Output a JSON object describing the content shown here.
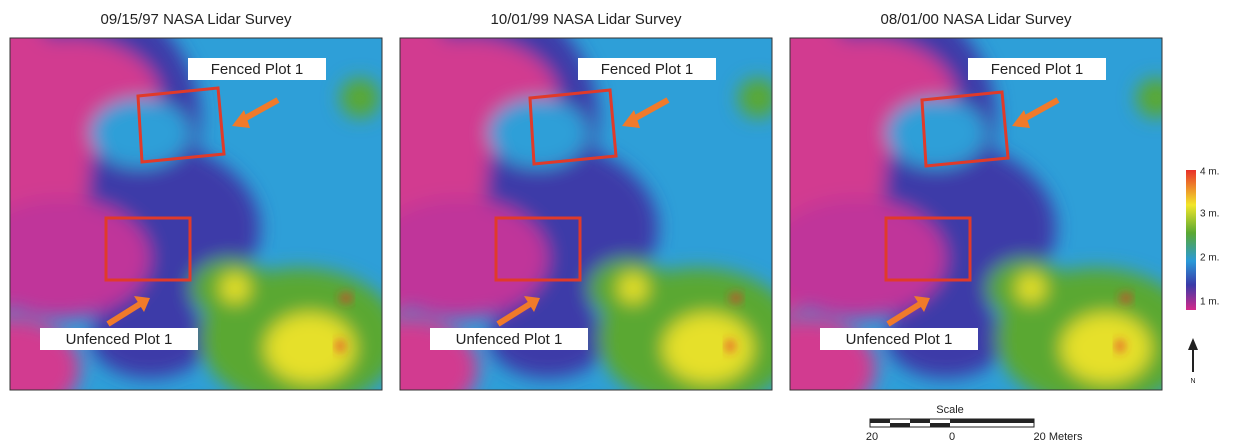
{
  "panels": [
    {
      "title": "09/15/97 NASA Lidar Survey",
      "fenced_label": "Fenced Plot 1",
      "unfenced_label": "Unfenced Plot 1"
    },
    {
      "title": "10/01/99 NASA Lidar Survey",
      "fenced_label": "Fenced Plot 1",
      "unfenced_label": "Unfenced Plot 1"
    },
    {
      "title": "08/01/00 NASA Lidar Survey",
      "fenced_label": "Fenced Plot 1",
      "unfenced_label": "Unfenced Plot 1"
    }
  ],
  "legend": {
    "labels": [
      "4 m.",
      "3 m.",
      "2 m.",
      "1 m."
    ]
  },
  "north": "N",
  "scale": {
    "title": "Scale",
    "labels": [
      "20",
      "0",
      "20 Meters"
    ]
  }
}
